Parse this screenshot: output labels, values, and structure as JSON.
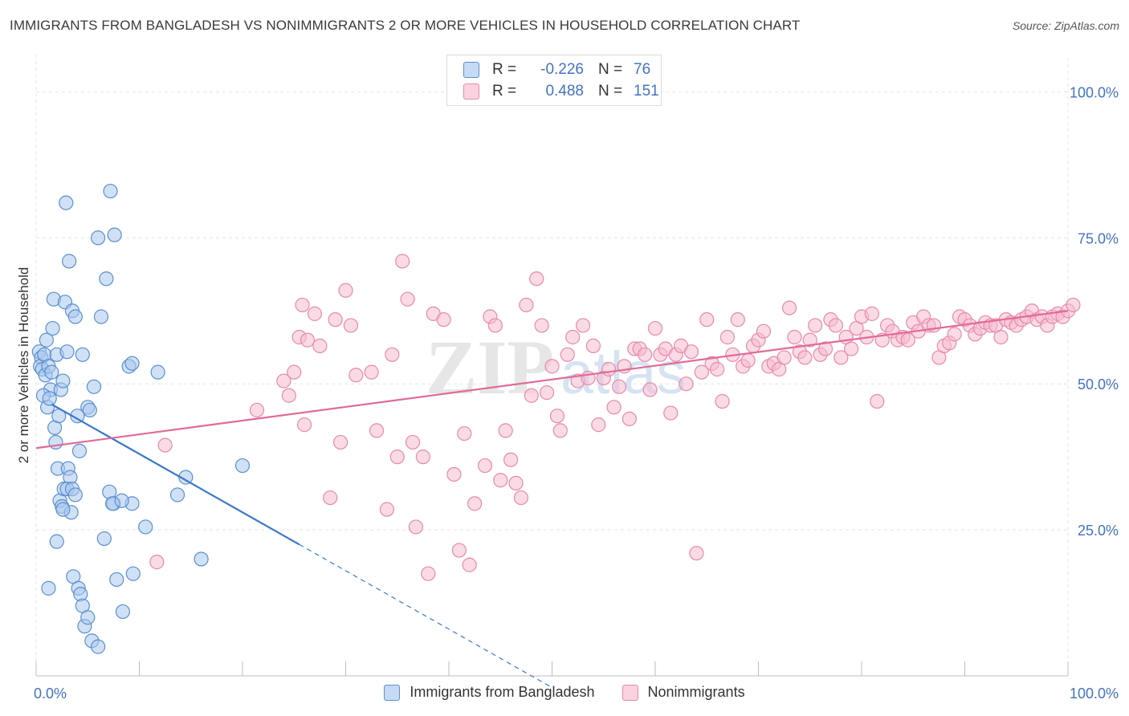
{
  "header": {
    "title": "IMMIGRANTS FROM BANGLADESH VS NONIMMIGRANTS 2 OR MORE VEHICLES IN HOUSEHOLD CORRELATION CHART",
    "source": "Source: ZipAtlas.com"
  },
  "watermark": {
    "part1": "ZIP",
    "part2": "atlas"
  },
  "colors": {
    "blue_fill": "#aac8ec",
    "blue_stroke": "#5b8fd0",
    "blue_line": "#3a78c9",
    "pink_fill": "#f6bcd0",
    "pink_stroke": "#e68aaa",
    "pink_line": "#e06b98",
    "value_text": "#4472c4"
  },
  "legend": {
    "rows": [
      {
        "r_label": "R =",
        "r_value": "-0.226",
        "n_label": "N =",
        "n_value": "76"
      },
      {
        "r_label": "R =",
        "r_value": "0.488",
        "n_label": "N =",
        "n_value": "151"
      }
    ]
  },
  "bottom_legend": {
    "items": [
      {
        "label": "Immigrants from Bangladesh"
      },
      {
        "label": "Nonimmigrants"
      }
    ]
  },
  "chart_data": {
    "type": "scatter",
    "xlabel": "",
    "ylabel": "2 or more Vehicles in Household",
    "xlim": [
      0,
      100
    ],
    "ylim": [
      0,
      105
    ],
    "x_tick_labels": [
      "0.0%",
      "100.0%"
    ],
    "y_ticks": [
      25,
      50,
      75,
      100
    ],
    "y_tick_labels": [
      "25.0%",
      "50.0%",
      "75.0%",
      "100.0%"
    ],
    "grid": true,
    "legend_position": "top-center",
    "series": [
      {
        "name": "Immigrants from Bangladesh",
        "trend": {
          "x0": 1.5,
          "y0": 46.5,
          "x1": 25.5,
          "y1": 22.5,
          "dash_to_x": 50,
          "dash_to_y": -2
        },
        "points": [
          [
            0.3,
            55.5
          ],
          [
            0.5,
            54.5
          ],
          [
            0.4,
            53
          ],
          [
            0.6,
            52.5
          ],
          [
            0.8,
            55
          ],
          [
            0.9,
            51.5
          ],
          [
            1.0,
            57.5
          ],
          [
            1.2,
            53
          ],
          [
            1.4,
            49
          ],
          [
            1.5,
            52
          ],
          [
            1.6,
            59.5
          ],
          [
            1.7,
            64.5
          ],
          [
            1.8,
            42.5
          ],
          [
            1.9,
            40
          ],
          [
            2.0,
            55
          ],
          [
            2.2,
            44.5
          ],
          [
            2.4,
            49
          ],
          [
            2.6,
            50.5
          ],
          [
            2.8,
            64
          ],
          [
            3.0,
            55.5
          ],
          [
            3.2,
            71
          ],
          [
            3.5,
            62.5
          ],
          [
            3.8,
            61.5
          ],
          [
            4.0,
            44.5
          ],
          [
            4.2,
            38.5
          ],
          [
            4.5,
            55
          ],
          [
            5.0,
            46
          ],
          [
            5.2,
            45.5
          ],
          [
            5.6,
            49.5
          ],
          [
            6.0,
            75
          ],
          [
            6.3,
            61.5
          ],
          [
            6.8,
            68
          ],
          [
            7.2,
            83
          ],
          [
            7.6,
            75.5
          ],
          [
            9.0,
            53
          ],
          [
            9.3,
            53.5
          ],
          [
            2.9,
            81
          ],
          [
            0.7,
            48
          ],
          [
            1.1,
            46
          ],
          [
            1.3,
            47.5
          ],
          [
            2.1,
            35.5
          ],
          [
            2.3,
            30
          ],
          [
            2.5,
            29
          ],
          [
            2.7,
            32
          ],
          [
            3.1,
            35.5
          ],
          [
            3.3,
            34
          ],
          [
            3.4,
            28
          ],
          [
            2.0,
            23
          ],
          [
            1.2,
            15
          ],
          [
            3.6,
            17
          ],
          [
            4.1,
            15
          ],
          [
            4.3,
            14
          ],
          [
            4.5,
            12
          ],
          [
            4.7,
            8.5
          ],
          [
            5.0,
            10
          ],
          [
            5.4,
            6
          ],
          [
            6.0,
            5
          ],
          [
            6.6,
            23.5
          ],
          [
            7.1,
            31.5
          ],
          [
            7.5,
            29.5
          ],
          [
            7.8,
            16.5
          ],
          [
            8.4,
            11
          ],
          [
            9.4,
            17.5
          ],
          [
            10.6,
            25.5
          ],
          [
            11.8,
            52
          ],
          [
            13.7,
            31
          ],
          [
            14.5,
            34
          ],
          [
            16.0,
            20
          ],
          [
            20.0,
            36
          ],
          [
            3.0,
            32
          ],
          [
            3.5,
            32
          ],
          [
            3.8,
            31
          ],
          [
            7.4,
            29.5
          ],
          [
            9.3,
            29.5
          ],
          [
            8.3,
            30
          ],
          [
            2.6,
            28.5
          ]
        ]
      },
      {
        "name": "Nonimmigrants",
        "trend": {
          "x0": 0,
          "y0": 39,
          "x1": 100,
          "y1": 62.5
        },
        "points": [
          [
            11.7,
            19.5
          ],
          [
            12.5,
            39.5
          ],
          [
            21.4,
            45.5
          ],
          [
            24.0,
            50.5
          ],
          [
            24.5,
            48
          ],
          [
            25.0,
            52
          ],
          [
            25.5,
            58
          ],
          [
            25.8,
            63.5
          ],
          [
            26.3,
            57.5
          ],
          [
            27.0,
            62
          ],
          [
            27.5,
            56.5
          ],
          [
            28.5,
            30.5
          ],
          [
            29.0,
            61
          ],
          [
            30.0,
            66
          ],
          [
            30.5,
            60
          ],
          [
            31.0,
            51.5
          ],
          [
            32.5,
            52
          ],
          [
            33.0,
            42
          ],
          [
            34.0,
            28.5
          ],
          [
            34.5,
            55
          ],
          [
            35.0,
            37.5
          ],
          [
            35.5,
            71
          ],
          [
            36.0,
            64.5
          ],
          [
            36.5,
            40
          ],
          [
            37.5,
            37.5
          ],
          [
            38.0,
            17.5
          ],
          [
            38.5,
            62
          ],
          [
            39.5,
            61
          ],
          [
            40.5,
            34.5
          ],
          [
            41.0,
            21.5
          ],
          [
            41.5,
            41.5
          ],
          [
            42.0,
            19
          ],
          [
            42.5,
            29.5
          ],
          [
            43.5,
            36
          ],
          [
            44.0,
            61.5
          ],
          [
            44.5,
            60
          ],
          [
            45.0,
            33.5
          ],
          [
            45.5,
            42
          ],
          [
            46.0,
            37
          ],
          [
            46.5,
            33
          ],
          [
            47.0,
            30.5
          ],
          [
            47.5,
            63.5
          ],
          [
            48.0,
            48
          ],
          [
            48.5,
            68
          ],
          [
            49.0,
            60
          ],
          [
            49.5,
            48.5
          ],
          [
            50.0,
            53
          ],
          [
            50.5,
            44.5
          ],
          [
            51.5,
            55
          ],
          [
            52.0,
            58
          ],
          [
            52.5,
            50.5
          ],
          [
            53.0,
            60
          ],
          [
            53.5,
            51
          ],
          [
            54.0,
            56.5
          ],
          [
            54.5,
            43
          ],
          [
            55.0,
            51
          ],
          [
            55.5,
            52.5
          ],
          [
            56.0,
            46
          ],
          [
            56.5,
            49.5
          ],
          [
            57.0,
            53
          ],
          [
            57.5,
            44
          ],
          [
            58.0,
            56
          ],
          [
            58.5,
            56
          ],
          [
            59.0,
            55
          ],
          [
            59.5,
            49
          ],
          [
            60.0,
            59.5
          ],
          [
            60.5,
            55
          ],
          [
            61.0,
            56
          ],
          [
            61.5,
            45
          ],
          [
            62.0,
            55
          ],
          [
            62.5,
            56.5
          ],
          [
            63.0,
            50
          ],
          [
            63.5,
            55.5
          ],
          [
            64.0,
            21
          ],
          [
            64.5,
            52
          ],
          [
            65.0,
            61
          ],
          [
            65.5,
            53.5
          ],
          [
            66.0,
            52.5
          ],
          [
            66.5,
            47
          ],
          [
            67.0,
            58
          ],
          [
            67.5,
            55
          ],
          [
            68.0,
            61
          ],
          [
            68.5,
            53
          ],
          [
            69.0,
            54
          ],
          [
            69.5,
            56.5
          ],
          [
            70.0,
            57.5
          ],
          [
            70.5,
            59
          ],
          [
            71.0,
            53
          ],
          [
            71.5,
            53.5
          ],
          [
            72.0,
            52.5
          ],
          [
            72.5,
            54.5
          ],
          [
            73.0,
            63
          ],
          [
            73.5,
            58
          ],
          [
            74.0,
            55.5
          ],
          [
            74.5,
            54.5
          ],
          [
            75.0,
            57.5
          ],
          [
            75.5,
            60
          ],
          [
            76.0,
            55
          ],
          [
            76.5,
            56
          ],
          [
            77.0,
            61
          ],
          [
            77.5,
            60
          ],
          [
            78.0,
            54.5
          ],
          [
            78.5,
            58
          ],
          [
            79.0,
            56
          ],
          [
            79.5,
            59.5
          ],
          [
            80.0,
            61.5
          ],
          [
            80.5,
            58
          ],
          [
            81.0,
            62
          ],
          [
            81.5,
            47
          ],
          [
            82.0,
            57.5
          ],
          [
            82.5,
            60
          ],
          [
            83.0,
            59
          ],
          [
            83.5,
            57.5
          ],
          [
            84.0,
            58
          ],
          [
            84.5,
            57.5
          ],
          [
            85.0,
            60.5
          ],
          [
            85.5,
            59
          ],
          [
            86.0,
            61.5
          ],
          [
            86.5,
            60
          ],
          [
            87.0,
            60
          ],
          [
            87.5,
            54.5
          ],
          [
            88.0,
            56.5
          ],
          [
            88.5,
            57
          ],
          [
            89.0,
            58.5
          ],
          [
            89.5,
            61.5
          ],
          [
            90.0,
            61
          ],
          [
            90.5,
            60
          ],
          [
            91.0,
            58.5
          ],
          [
            91.5,
            59.5
          ],
          [
            92.0,
            60.5
          ],
          [
            92.5,
            60
          ],
          [
            93.0,
            60
          ],
          [
            93.5,
            58
          ],
          [
            94.0,
            61
          ],
          [
            94.5,
            60.5
          ],
          [
            95.0,
            60
          ],
          [
            95.5,
            61
          ],
          [
            96.0,
            61.5
          ],
          [
            96.5,
            62.5
          ],
          [
            97.0,
            61
          ],
          [
            97.5,
            61.5
          ],
          [
            98.0,
            60
          ],
          [
            98.5,
            61.5
          ],
          [
            99.0,
            62
          ],
          [
            99.5,
            61.5
          ],
          [
            100.0,
            62.5
          ],
          [
            100.5,
            63.5
          ],
          [
            26.0,
            43
          ],
          [
            29.5,
            40
          ],
          [
            36.8,
            25.5
          ],
          [
            50.8,
            42
          ]
        ]
      }
    ]
  }
}
